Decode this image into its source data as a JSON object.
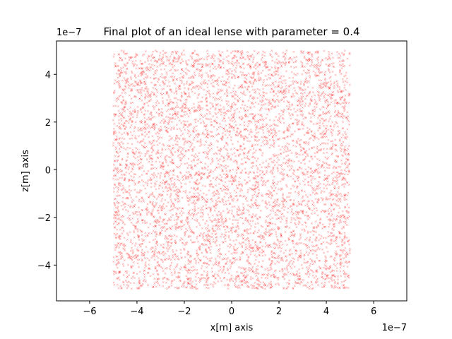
{
  "chart_data": {
    "type": "scatter",
    "title": "Final plot of an ideal lense with parameter = 0.4",
    "xlabel": "x[m] axis",
    "ylabel": "z[m] axis",
    "x_offset_label": "1e−7",
    "y_offset_label": "1e−7",
    "xlim": [
      -7.4,
      7.4
    ],
    "ylim": [
      -5.5,
      5.4
    ],
    "x_ticks": [
      -6,
      -4,
      -2,
      0,
      2,
      4,
      6
    ],
    "y_ticks": [
      -4,
      -2,
      0,
      2,
      4
    ],
    "x_tick_labels": [
      "−6",
      "−4",
      "−2",
      "0",
      "2",
      "4",
      "6"
    ],
    "y_tick_labels": [
      "−4",
      "−2",
      "0",
      "2",
      "4"
    ],
    "point_region": {
      "x": [
        -5.0,
        5.0
      ],
      "y": [
        -5.0,
        5.0
      ]
    },
    "point_count": 6000,
    "marker": "x",
    "marker_color": "#ff0000",
    "grid": false,
    "legend": "none"
  }
}
